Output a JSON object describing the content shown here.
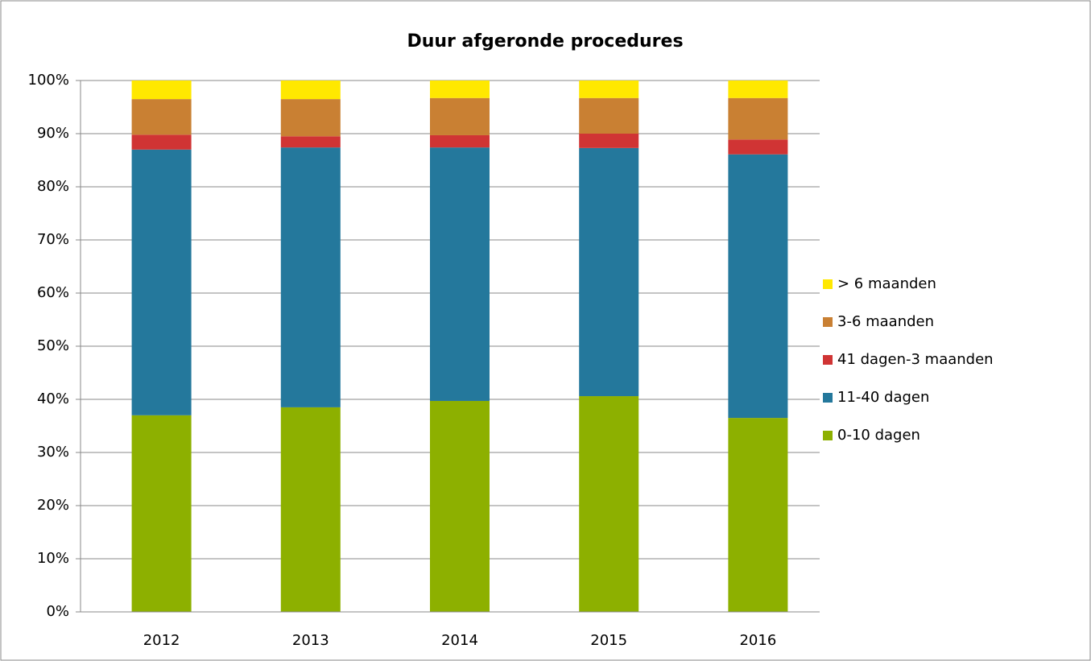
{
  "chart_data": {
    "type": "stacked_bar",
    "title": "Duur afgeronde procedures",
    "categories": [
      "2012",
      "2013",
      "2014",
      "2015",
      "2016"
    ],
    "series": [
      {
        "name": "0-10 dagen",
        "color": "#8db000",
        "values": [
          37.0,
          38.5,
          39.7,
          40.6,
          36.5
        ]
      },
      {
        "name": "11-40 dagen",
        "color": "#24789c",
        "values": [
          50.0,
          48.9,
          47.7,
          46.7,
          49.6
        ]
      },
      {
        "name": "41 dagen-3 maanden",
        "color": "#d03434",
        "values": [
          2.8,
          2.1,
          2.3,
          2.7,
          2.8
        ]
      },
      {
        "name": "3-6 maanden",
        "color": "#c98033",
        "values": [
          6.7,
          7.0,
          7.0,
          6.7,
          7.8
        ]
      },
      {
        "name": "> 6 maanden",
        "color": "#ffe800",
        "values": [
          3.5,
          3.5,
          3.3,
          3.3,
          3.3
        ]
      }
    ],
    "ylim": [
      0,
      100
    ],
    "yticks": [
      {
        "value": 0,
        "label": "0%"
      },
      {
        "value": 10,
        "label": "10%"
      },
      {
        "value": 20,
        "label": "20%"
      },
      {
        "value": 30,
        "label": "30%"
      },
      {
        "value": 40,
        "label": "40%"
      },
      {
        "value": 50,
        "label": "50%"
      },
      {
        "value": 60,
        "label": "60%"
      },
      {
        "value": 70,
        "label": "70%"
      },
      {
        "value": 80,
        "label": "80%"
      },
      {
        "value": 90,
        "label": "90%"
      },
      {
        "value": 100,
        "label": "100%"
      }
    ],
    "grid": true,
    "legend": "right"
  }
}
